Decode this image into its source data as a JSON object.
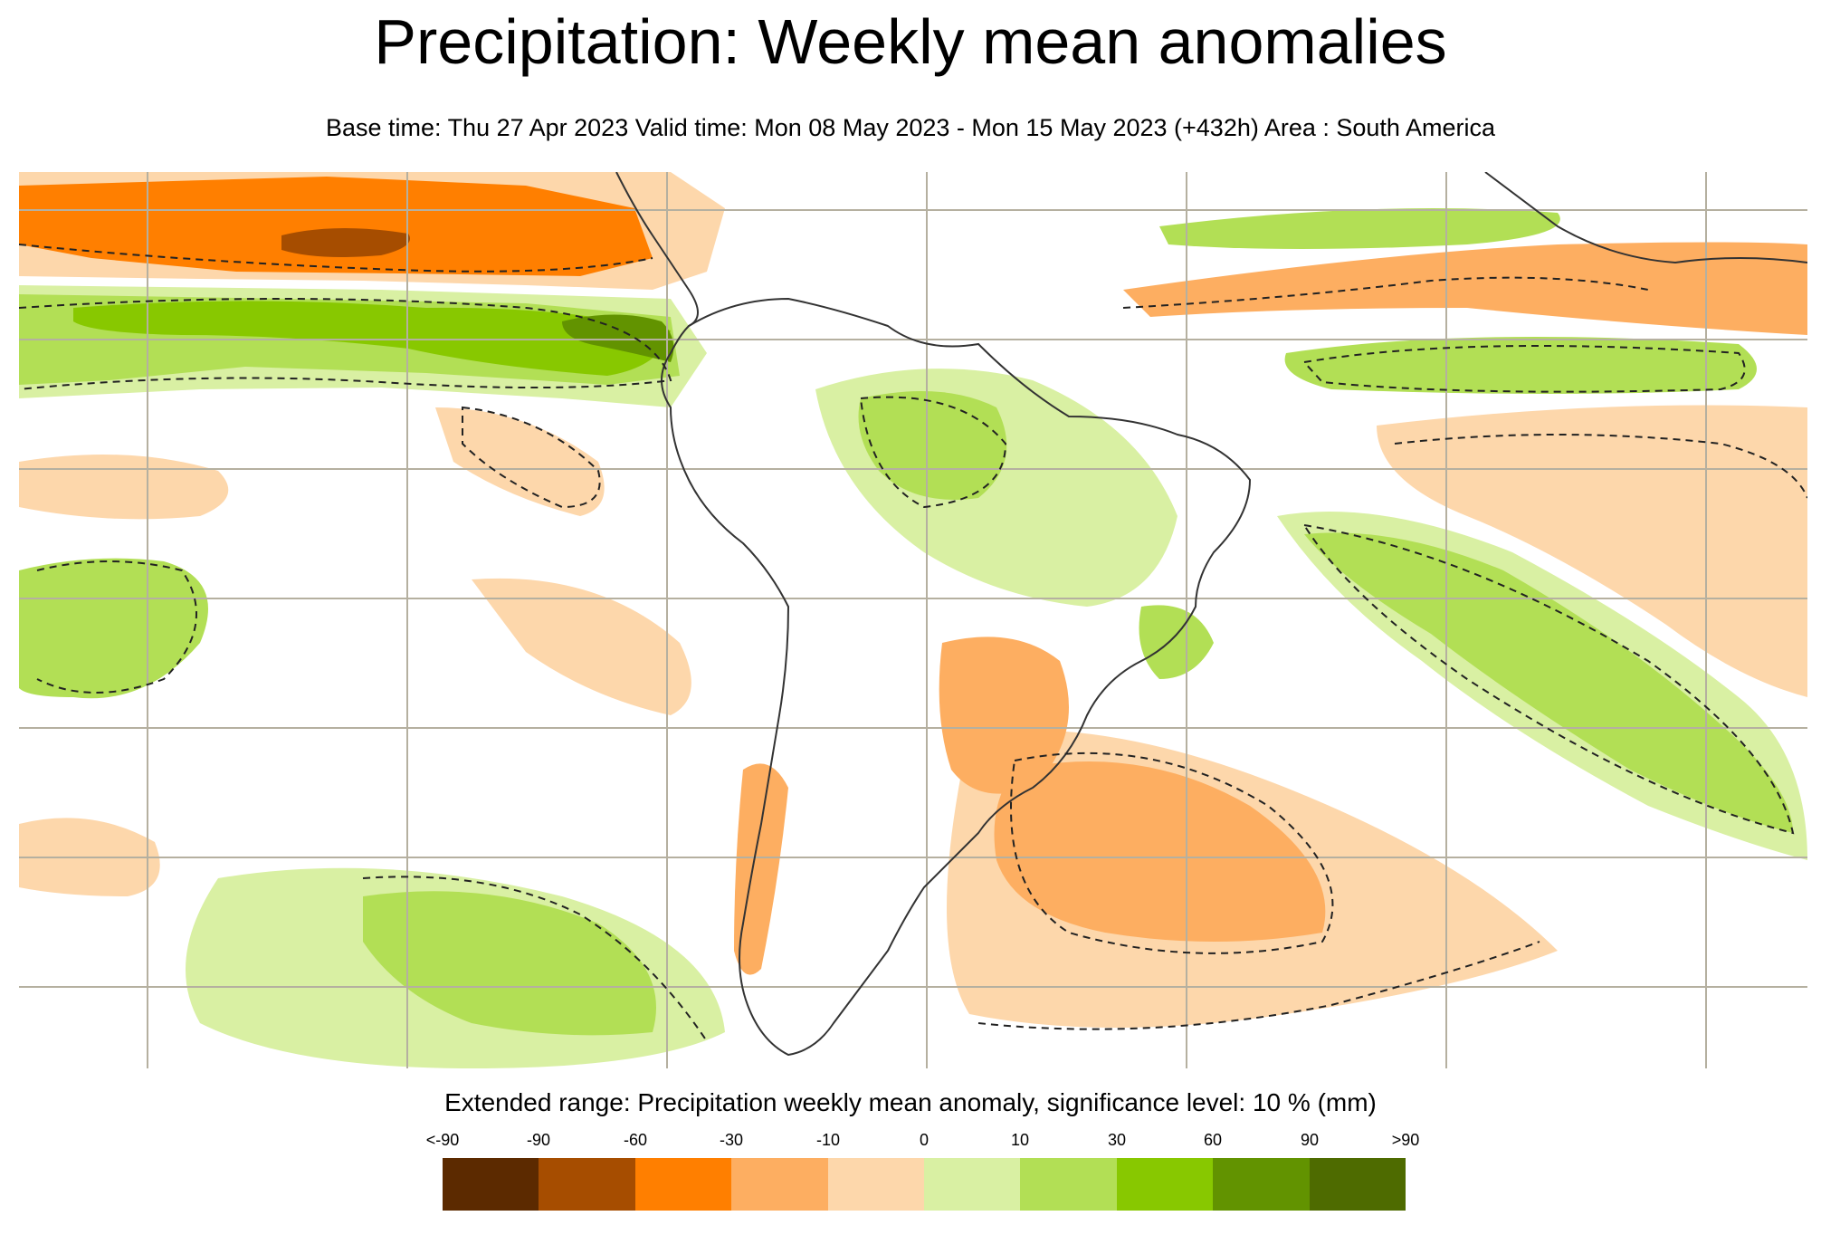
{
  "header": {
    "title": "Precipitation: Weekly mean anomalies",
    "subtitle": "Base time: Thu 27 Apr 2023 Valid time: Mon 08 May 2023 - Mon 15 May 2023 (+432h) Area : South America"
  },
  "map": {
    "area": "South America",
    "colors": {
      "very_dry": "#5c2a00",
      "dry_90": "#a64d00",
      "dry_60": "#ff7f00",
      "dry_30": "#fdae61",
      "dry_10": "#fdd7ab",
      "wet_0": "#d9f0a3",
      "wet_10": "#b2df55",
      "wet_30": "#88c800",
      "wet_60": "#629300",
      "wet_90": "#4e6b00",
      "land_outline": "#333333",
      "grid": "#b5b0a0",
      "significance_contour": "#222222"
    }
  },
  "legend": {
    "title": "Extended range: Precipitation weekly mean anomaly, significance level: 10 % (mm)",
    "ticks": [
      "<-90",
      "-90",
      "-60",
      "-30",
      "-10",
      "0",
      "10",
      "30",
      "60",
      "90",
      ">90"
    ],
    "colors": [
      "#5c2a00",
      "#a64d00",
      "#ff7f00",
      "#fdae61",
      "#fdd7ab",
      "#d9f0a3",
      "#b2df55",
      "#88c800",
      "#629300",
      "#4e6b00"
    ]
  }
}
